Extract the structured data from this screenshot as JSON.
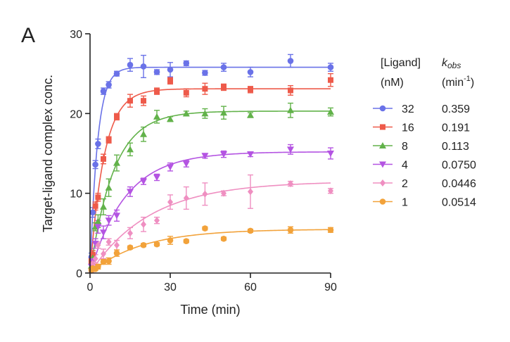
{
  "panel_label": "A",
  "chart_data": {
    "type": "scatter",
    "xlabel": "Time (min)",
    "ylabel": "Target-ligand complex conc.",
    "xlim": [
      0,
      90
    ],
    "ylim": [
      0,
      30
    ],
    "xticks": [
      0,
      30,
      60,
      90
    ],
    "yticks": [
      0,
      10,
      20,
      30
    ],
    "legend": {
      "placement": "right",
      "header_col1": [
        "[Ligand]",
        "(nM)"
      ],
      "header_col2_main": "k",
      "header_col2_sub": "obs",
      "header_col2_unit_pre": "(min",
      "header_col2_unit_sup": "-1",
      "header_col2_unit_post": ")"
    },
    "series": [
      {
        "name": "32",
        "kobs": "0.359",
        "color": "#6a72e8",
        "marker": "circle",
        "plateau": 25.8,
        "x": [
          0.5,
          1,
          2,
          3,
          5,
          7,
          10,
          15,
          20,
          25,
          30,
          36,
          43,
          50,
          60,
          75,
          90
        ],
        "y": [
          2.0,
          7.6,
          13.6,
          16.2,
          22.8,
          23.6,
          25.0,
          26.1,
          25.9,
          25.2,
          25.5,
          26.3,
          25.1,
          25.8,
          25.2,
          26.6,
          25.8
        ],
        "err": [
          0.5,
          0.6,
          0.5,
          0.6,
          0.4,
          0.4,
          0.3,
          0.8,
          1.4,
          0.3,
          0.9,
          0.3,
          0.3,
          0.5,
          0.6,
          0.8,
          0.5
        ]
      },
      {
        "name": "16",
        "kobs": "0.191",
        "color": "#ee5a4a",
        "marker": "square",
        "plateau": 23.1,
        "x": [
          0.5,
          1,
          2,
          3,
          5,
          7,
          10,
          15,
          20,
          25,
          30,
          36,
          43,
          50,
          60,
          75,
          90
        ],
        "y": [
          1.5,
          2.3,
          8.4,
          9.5,
          14.3,
          16.7,
          19.6,
          21.6,
          21.6,
          22.8,
          24.1,
          22.6,
          23.1,
          23.3,
          23.0,
          22.9,
          24.2
        ],
        "err": [
          0.4,
          0.5,
          0.5,
          0.5,
          0.6,
          0.4,
          0.4,
          0.8,
          0.6,
          0.4,
          0.4,
          0.5,
          0.7,
          0.4,
          0.4,
          0.6,
          0.8
        ]
      },
      {
        "name": "8",
        "kobs": "0.113",
        "color": "#62b24a",
        "marker": "triangle-up",
        "plateau": 20.3,
        "x": [
          0.5,
          1,
          2,
          3,
          5,
          7,
          10,
          15,
          20,
          25,
          30,
          36,
          43,
          50,
          60,
          75,
          90
        ],
        "y": [
          0.9,
          1.9,
          5.8,
          6.5,
          8.3,
          10.7,
          13.8,
          15.5,
          17.4,
          19.6,
          19.3,
          20.0,
          20.0,
          20.1,
          19.8,
          20.4,
          20.2
        ],
        "err": [
          0.3,
          0.4,
          0.5,
          0.8,
          1.0,
          1.1,
          1.0,
          0.8,
          0.9,
          0.8,
          0.3,
          0.3,
          0.6,
          0.8,
          0.3,
          0.9,
          0.5
        ]
      },
      {
        "name": "4",
        "kobs": "0.0750",
        "color": "#b454e2",
        "marker": "triangle-down",
        "plateau": 15.2,
        "x": [
          0.5,
          1,
          2,
          3,
          5,
          7,
          10,
          15,
          20,
          25,
          30,
          36,
          43,
          50,
          60,
          75,
          90
        ],
        "y": [
          0.8,
          1.5,
          3.7,
          5.8,
          5.1,
          6.6,
          7.2,
          10.2,
          11.5,
          12.0,
          13.3,
          13.7,
          14.7,
          14.9,
          14.9,
          15.5,
          15.0
        ],
        "err": [
          0.3,
          0.4,
          0.6,
          0.8,
          0.8,
          0.6,
          0.7,
          0.6,
          0.4,
          0.4,
          0.5,
          0.4,
          0.3,
          0.4,
          0.3,
          0.6,
          0.7
        ]
      },
      {
        "name": "2",
        "kobs": "0.0446",
        "color": "#ef8fc1",
        "marker": "diamond",
        "plateau": 11.5,
        "x": [
          0.5,
          1,
          2,
          3,
          5,
          7,
          10,
          15,
          20,
          25,
          30,
          36,
          43,
          50,
          60,
          75,
          90
        ],
        "y": [
          0.3,
          1.2,
          1.8,
          3.5,
          2.4,
          3.9,
          3.5,
          5.0,
          6.1,
          6.6,
          8.9,
          9.4,
          9.9,
          10.0,
          10.2,
          11.2,
          10.3
        ],
        "err": [
          0.2,
          0.3,
          0.5,
          0.4,
          0.6,
          0.4,
          0.6,
          0.7,
          0.9,
          0.4,
          0.9,
          1.4,
          1.4,
          0.3,
          2.1,
          0.3,
          0.3
        ]
      },
      {
        "name": "1",
        "kobs": "0.0514",
        "color": "#f2a23a",
        "marker": "circle",
        "plateau": 5.5,
        "x": [
          0.5,
          1,
          2,
          3,
          5,
          7,
          10,
          15,
          20,
          25,
          30,
          36,
          43,
          50,
          60,
          75,
          90
        ],
        "y": [
          0.4,
          0.6,
          0.5,
          0.8,
          1.4,
          1.5,
          2.5,
          3.2,
          3.5,
          3.6,
          4.1,
          4.0,
          5.6,
          4.3,
          5.3,
          5.4,
          5.4
        ],
        "err": [
          0.2,
          0.2,
          0.2,
          0.3,
          0.3,
          0.4,
          0.4,
          0.2,
          0.2,
          0.2,
          0.5,
          0.2,
          0.2,
          0.2,
          0.2,
          0.4,
          0.3
        ]
      }
    ]
  }
}
